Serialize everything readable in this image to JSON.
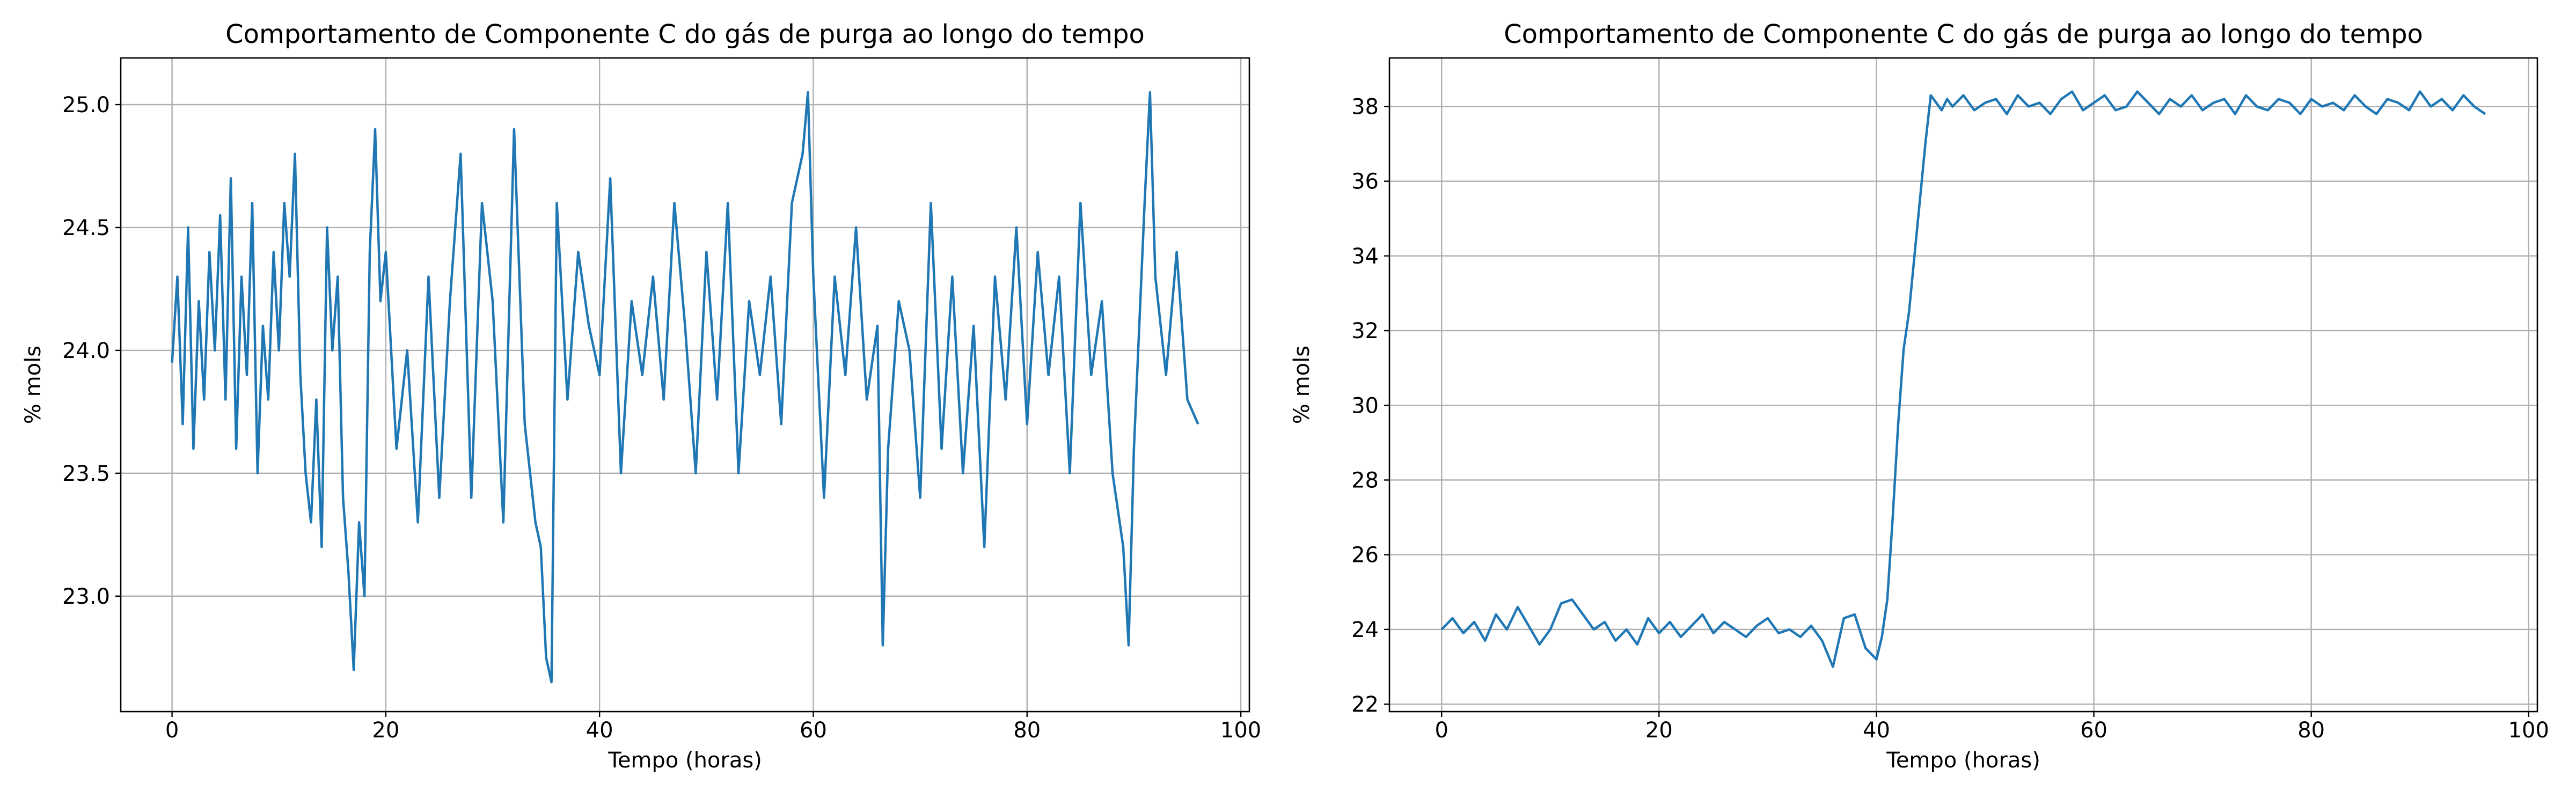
{
  "chart_data": [
    {
      "type": "line",
      "title": "Comportamento de Componente C do gás de purga ao longo do tempo",
      "xlabel": "Tempo (horas)",
      "ylabel": "% mols",
      "xlim": [
        -4.8,
        100.8
      ],
      "ylim": [
        22.53,
        25.19
      ],
      "xticks": [
        0,
        20,
        40,
        60,
        80,
        100
      ],
      "xtick_labels": [
        "0",
        "20",
        "40",
        "60",
        "80",
        "100"
      ],
      "yticks": [
        23.0,
        23.5,
        24.0,
        24.5,
        25.0
      ],
      "ytick_labels": [
        "23.0",
        "23.5",
        "24.0",
        "24.5",
        "25.0"
      ],
      "grid": true,
      "color": "#1f77b4",
      "series": [
        {
          "x": [
            0,
            0.5,
            1,
            1.5,
            2,
            2.5,
            3,
            3.5,
            4,
            4.5,
            5,
            5.5,
            6,
            6.5,
            7,
            7.5,
            8,
            8.5,
            9,
            9.5,
            10,
            10.5,
            11,
            11.5,
            12,
            12.5,
            13,
            13.5,
            14,
            14.5,
            15,
            15.5,
            16,
            16.5,
            17,
            17.5,
            18,
            18.5,
            19,
            19.5,
            20,
            21,
            22,
            23,
            24,
            25,
            26,
            27,
            28,
            29,
            30,
            31,
            32,
            33,
            34,
            34.5,
            35,
            35.5,
            36,
            37,
            38,
            39,
            40,
            41,
            42,
            43,
            44,
            45,
            46,
            47,
            48,
            49,
            50,
            51,
            52,
            53,
            54,
            55,
            56,
            57,
            58,
            59,
            59.5,
            60,
            61,
            62,
            63,
            64,
            65,
            66,
            66.5,
            67,
            68,
            69,
            70,
            71,
            72,
            73,
            74,
            75,
            76,
            77,
            78,
            79,
            80,
            81,
            82,
            83,
            84,
            85,
            86,
            87,
            88,
            89,
            89.5,
            90,
            91,
            91.5,
            92,
            93,
            94,
            95,
            96
          ],
          "y": [
            23.95,
            24.3,
            23.7,
            24.5,
            23.6,
            24.2,
            23.8,
            24.4,
            24.0,
            24.55,
            23.8,
            24.7,
            23.6,
            24.3,
            23.9,
            24.6,
            23.5,
            24.1,
            23.8,
            24.4,
            24.0,
            24.6,
            24.3,
            24.8,
            23.9,
            23.5,
            23.3,
            23.8,
            23.2,
            24.5,
            24.0,
            24.3,
            23.4,
            23.1,
            22.7,
            23.3,
            23.0,
            24.4,
            24.9,
            24.2,
            24.4,
            23.6,
            24.0,
            23.3,
            24.3,
            23.4,
            24.2,
            24.8,
            23.4,
            24.6,
            24.2,
            23.3,
            24.9,
            23.7,
            23.3,
            23.2,
            22.75,
            22.65,
            24.6,
            23.8,
            24.4,
            24.1,
            23.9,
            24.7,
            23.5,
            24.2,
            23.9,
            24.3,
            23.8,
            24.6,
            24.1,
            23.5,
            24.4,
            23.8,
            24.6,
            23.5,
            24.2,
            23.9,
            24.3,
            23.7,
            24.6,
            24.8,
            25.05,
            24.3,
            23.4,
            24.3,
            23.9,
            24.5,
            23.8,
            24.1,
            22.8,
            23.6,
            24.2,
            24.0,
            23.4,
            24.6,
            23.6,
            24.3,
            23.5,
            24.1,
            23.2,
            24.3,
            23.8,
            24.5,
            23.7,
            24.4,
            23.9,
            24.3,
            23.5,
            24.6,
            23.9,
            24.2,
            23.5,
            23.2,
            22.8,
            23.6,
            24.6,
            25.05,
            24.3,
            23.9,
            24.4,
            23.8,
            23.7
          ]
        }
      ]
    },
    {
      "type": "line",
      "title": "Comportamento de Componente C do gás de purga ao longo do tempo",
      "xlabel": "Tempo (horas)",
      "ylabel": "% mols",
      "xlim": [
        -4.8,
        100.8
      ],
      "ylim": [
        21.8,
        39.3
      ],
      "xticks": [
        0,
        20,
        40,
        60,
        80,
        100
      ],
      "xtick_labels": [
        "0",
        "20",
        "40",
        "60",
        "80",
        "100"
      ],
      "yticks": [
        22,
        24,
        26,
        28,
        30,
        32,
        34,
        36,
        38
      ],
      "ytick_labels": [
        "22",
        "24",
        "26",
        "28",
        "30",
        "32",
        "34",
        "36",
        "38"
      ],
      "grid": true,
      "color": "#1f77b4",
      "series": [
        {
          "x": [
            0,
            1,
            2,
            3,
            4,
            5,
            6,
            7,
            8,
            9,
            10,
            11,
            12,
            13,
            14,
            15,
            16,
            17,
            18,
            19,
            20,
            21,
            22,
            23,
            24,
            25,
            26,
            27,
            28,
            29,
            30,
            31,
            32,
            33,
            34,
            35,
            36,
            37,
            38,
            39,
            40,
            40.5,
            41,
            41.5,
            42,
            42.5,
            43,
            43.5,
            44,
            44.5,
            45,
            45.5,
            46,
            46.5,
            47,
            48,
            49,
            50,
            51,
            52,
            53,
            54,
            55,
            56,
            57,
            58,
            59,
            60,
            61,
            62,
            63,
            64,
            65,
            66,
            67,
            68,
            69,
            70,
            71,
            72,
            73,
            74,
            75,
            76,
            77,
            78,
            79,
            80,
            81,
            82,
            83,
            84,
            85,
            86,
            87,
            88,
            89,
            90,
            91,
            92,
            93,
            94,
            95,
            96
          ],
          "y": [
            24.0,
            24.3,
            23.9,
            24.2,
            23.7,
            24.4,
            24.0,
            24.6,
            24.1,
            23.6,
            24.0,
            24.7,
            24.8,
            24.4,
            24.0,
            24.2,
            23.7,
            24.0,
            23.6,
            24.3,
            23.9,
            24.2,
            23.8,
            24.1,
            24.4,
            23.9,
            24.2,
            24.0,
            23.8,
            24.1,
            24.3,
            23.9,
            24.0,
            23.8,
            24.1,
            23.7,
            23.0,
            24.3,
            24.4,
            23.5,
            23.2,
            23.8,
            24.8,
            27.0,
            29.5,
            31.5,
            32.5,
            34.0,
            35.5,
            37.0,
            38.3,
            38.1,
            37.9,
            38.2,
            38.0,
            38.3,
            37.9,
            38.1,
            38.2,
            37.8,
            38.3,
            38.0,
            38.1,
            37.8,
            38.2,
            38.4,
            37.9,
            38.1,
            38.3,
            37.9,
            38.0,
            38.4,
            38.1,
            37.8,
            38.2,
            38.0,
            38.3,
            37.9,
            38.1,
            38.2,
            37.8,
            38.3,
            38.0,
            37.9,
            38.2,
            38.1,
            37.8,
            38.2,
            38.0,
            38.1,
            37.9,
            38.3,
            38.0,
            37.8,
            38.2,
            38.1,
            37.9,
            38.4,
            38.0,
            38.2,
            37.9,
            38.3,
            38.0,
            37.8
          ]
        }
      ]
    }
  ]
}
